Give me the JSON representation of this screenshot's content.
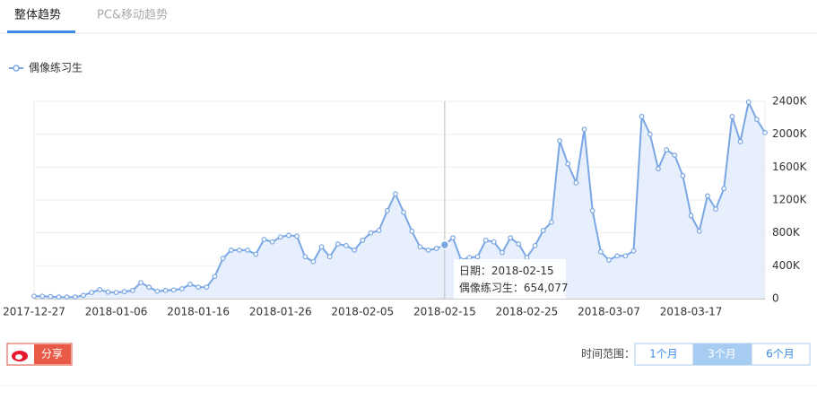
{
  "tabs": [
    "整体趋势",
    "PC&移动趋势"
  ],
  "share": "分享",
  "time_range": {
    "label": "时间范围：",
    "options": [
      "1个月",
      "3个月",
      "6个月"
    ]
  },
  "chart_data": {
    "type": "line",
    "x": [
      "2017-12-27",
      "2017-12-28",
      "2017-12-29",
      "2017-12-30",
      "2017-12-31",
      "2018-01-01",
      "2018-01-02",
      "2018-01-03",
      "2018-01-04",
      "2018-01-05",
      "2018-01-06",
      "2018-01-07",
      "2018-01-08",
      "2018-01-09",
      "2018-01-10",
      "2018-01-11",
      "2018-01-12",
      "2018-01-13",
      "2018-01-14",
      "2018-01-15",
      "2018-01-16",
      "2018-01-17",
      "2018-01-18",
      "2018-01-19",
      "2018-01-20",
      "2018-01-21",
      "2018-01-22",
      "2018-01-23",
      "2018-01-24",
      "2018-01-25",
      "2018-01-26",
      "2018-01-27",
      "2018-01-28",
      "2018-01-29",
      "2018-01-30",
      "2018-01-31",
      "2018-02-01",
      "2018-02-02",
      "2018-02-03",
      "2018-02-04",
      "2018-02-05",
      "2018-02-06",
      "2018-02-07",
      "2018-02-08",
      "2018-02-09",
      "2018-02-10",
      "2018-02-11",
      "2018-02-12",
      "2018-02-13",
      "2018-02-14",
      "2018-02-15",
      "2018-02-16",
      "2018-02-17",
      "2018-02-18",
      "2018-02-19",
      "2018-02-20",
      "2018-02-21",
      "2018-02-22",
      "2018-02-23",
      "2018-02-24",
      "2018-02-25",
      "2018-02-26",
      "2018-02-27",
      "2018-02-28",
      "2018-03-01",
      "2018-03-02",
      "2018-03-03",
      "2018-03-04",
      "2018-03-05",
      "2018-03-06",
      "2018-03-07",
      "2018-03-08",
      "2018-03-09",
      "2018-03-10",
      "2018-03-11",
      "2018-03-12",
      "2018-03-13",
      "2018-03-14",
      "2018-03-15",
      "2018-03-16",
      "2018-03-17",
      "2018-03-18",
      "2018-03-19",
      "2018-03-20",
      "2018-03-21",
      "2018-03-22",
      "2018-03-23",
      "2018-03-24",
      "2018-03-25",
      "2018-03-26"
    ],
    "series": [
      {
        "name": "偶像练习生",
        "color": "#7aa7e4",
        "values": [
          30000,
          30000,
          25000,
          20000,
          20000,
          20000,
          40000,
          75000,
          110000,
          80000,
          75000,
          85000,
          100000,
          195000,
          140000,
          90000,
          100000,
          105000,
          120000,
          175000,
          140000,
          140000,
          270000,
          490000,
          590000,
          590000,
          590000,
          540000,
          720000,
          690000,
          750000,
          770000,
          760000,
          510000,
          450000,
          630000,
          510000,
          665000,
          645000,
          590000,
          710000,
          800000,
          830000,
          1070000,
          1275000,
          1050000,
          820000,
          630000,
          590000,
          610000,
          654077,
          740000,
          470000,
          500000,
          510000,
          710000,
          690000,
          560000,
          740000,
          665000,
          500000,
          645000,
          830000,
          930000,
          1920000,
          1640000,
          1410000,
          2060000,
          1070000,
          570000,
          470000,
          520000,
          520000,
          580000,
          2215000,
          2000000,
          1580000,
          1810000,
          1745000,
          1495000,
          1010000,
          820000,
          1250000,
          1090000,
          1340000,
          2215000,
          1910000,
          2390000,
          2180000,
          2020000
        ]
      }
    ],
    "ylim": [
      0,
      2400000
    ],
    "yticks": [
      0,
      {
        "value": 400000,
        "label": "400K"
      },
      {
        "value": 800000,
        "label": "800K"
      },
      {
        "value": 1200000,
        "label": "1200K"
      },
      {
        "value": 1600000,
        "label": "1600K"
      },
      {
        "value": 2000000,
        "label": "2000K"
      },
      {
        "value": 2400000,
        "label": "2400K"
      }
    ],
    "grid": true,
    "tooltip": {
      "date_label": "日期：",
      "series_label": "偶像练习生：",
      "value_label": "654,077"
    }
  }
}
